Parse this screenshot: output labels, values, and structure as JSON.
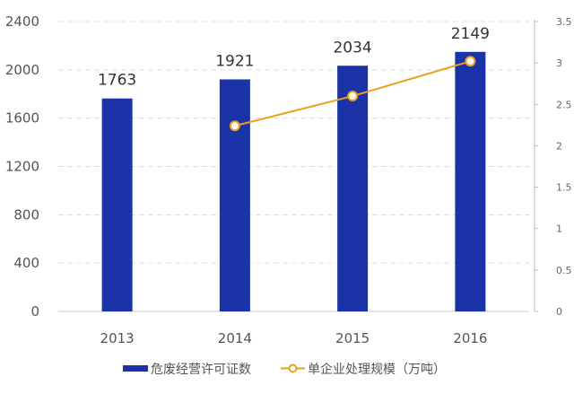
{
  "chart_data": {
    "type": "bar+line",
    "categories": [
      "2013",
      "2014",
      "2015",
      "2016"
    ],
    "series": [
      {
        "name": "危废经营许可证数",
        "type": "bar",
        "axis": "left",
        "color": "#1a33a6",
        "values": [
          1763,
          1921,
          2034,
          2149
        ]
      },
      {
        "name": "单企业处理规模（万吨）",
        "type": "line",
        "axis": "right",
        "color": "#e8a020",
        "values": [
          null,
          2.24,
          2.6,
          3.02
        ]
      }
    ],
    "left_axis": {
      "ylim": [
        0,
        2400
      ],
      "ticks": [
        "0",
        "400",
        "800",
        "1200",
        "1600",
        "2000",
        "2400"
      ]
    },
    "right_axis": {
      "ylim": [
        0,
        3.5
      ],
      "ticks": [
        "0",
        "0.5",
        "1",
        "1.5",
        "2",
        "2.5",
        "3",
        "3.5"
      ]
    },
    "data_labels": [
      "1763",
      "1921",
      "2034",
      "2149"
    ],
    "grid": "horizontal dashed",
    "legend": "bottom"
  }
}
